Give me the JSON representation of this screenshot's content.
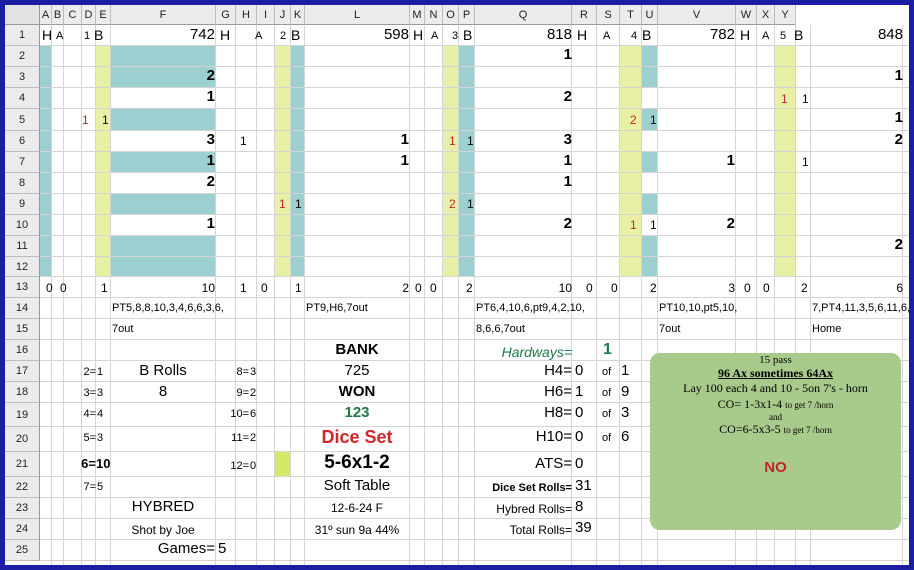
{
  "columns": [
    "A",
    "B",
    "C",
    "D",
    "E",
    "F",
    "G",
    "H",
    "I",
    "J",
    "K",
    "L",
    "M",
    "N",
    "O",
    "P",
    "Q",
    "R",
    "S",
    "T",
    "U",
    "V",
    "W",
    "X",
    "Y"
  ],
  "rows": [
    "1",
    "2",
    "3",
    "4",
    "5",
    "6",
    "7",
    "8",
    "9",
    "10",
    "11",
    "12",
    "13",
    "14",
    "15",
    "16",
    "17",
    "18",
    "19",
    "20",
    "21",
    "22",
    "23",
    "24",
    "25"
  ],
  "row1": {
    "g1": {
      "h": "H",
      "a": "A",
      "n": "1",
      "b": "B",
      "score": "742"
    },
    "g2": {
      "h": "H",
      "a": "A",
      "n": "2",
      "b": "B",
      "score": "598"
    },
    "g3": {
      "h": "H",
      "a": "A",
      "n": "3",
      "b": "B",
      "score": "818"
    },
    "g4": {
      "h": "H",
      "a": "A",
      "n": "4",
      "b": "B",
      "score": "782"
    },
    "g5": {
      "h": "H",
      "a": "A",
      "n": "5",
      "b": "B",
      "score": "848"
    }
  },
  "grid": {
    "e3": "2",
    "e4": "1",
    "e6": "3",
    "e7": "1",
    "e8": "2",
    "e10": "1",
    "c5": "1",
    "d5": "1",
    "f6": "1",
    "h9": "1",
    "i9": "1",
    "j6": "1",
    "j7": "1",
    "m6": "1",
    "n6": "1",
    "m9": "2",
    "n9": "1",
    "o2": "1",
    "o4": "2",
    "o6": "3",
    "o7": "1",
    "o8": "1",
    "o10": "2",
    "r5": "2",
    "s5": "1",
    "r10": "1",
    "s10": "1",
    "t7": "1",
    "t10": "2",
    "w4": "1",
    "x4": "1",
    "x7": "1",
    "y3": "1",
    "y5": "1",
    "y6": "2",
    "y11": "2"
  },
  "row13": {
    "a": "0",
    "b": "0",
    "d": "1",
    "e": "10",
    "f": "1",
    "g": "0",
    "i": "1",
    "j": "2",
    "k": "0",
    "l": "0",
    "n": "2",
    "o": "10",
    "p": "0",
    "q": "0",
    "s": "2",
    "t": "3",
    "u": "0",
    "v": "0",
    "x": "2",
    "y": "6"
  },
  "points": {
    "g1_line1": "PT5,8,8,10,3,4,6,6,3,6,",
    "g1_line2": "7out",
    "g2_line1": "PT9,H6,7out",
    "g3_line1": "PT6,4,10,6,pt9,4,2,10,",
    "g3_line2": "8,6,6,7out",
    "g4_line1": "PT10,10,pt5,10,",
    "g4_line2": "7out",
    "g5_line1": "7,PT4,11,3,5,6,11,6,",
    "g5_line2": "Home"
  },
  "roll_counts": [
    {
      "label": "2=",
      "value": "1"
    },
    {
      "label": "3=",
      "value": "3"
    },
    {
      "label": "4=",
      "value": "4"
    },
    {
      "label": "5=",
      "value": "3"
    },
    {
      "label": "6=",
      "value": "10"
    },
    {
      "label": "7=",
      "value": "5"
    },
    {
      "label": "8=",
      "value": "3"
    },
    {
      "label": "9=",
      "value": "2"
    },
    {
      "label": "10=",
      "value": "6"
    },
    {
      "label": "11=",
      "value": "2"
    },
    {
      "label": "12=",
      "value": "0"
    }
  ],
  "b_rolls": {
    "label": "B Rolls",
    "value": "8"
  },
  "bank": {
    "label": "BANK",
    "value": "725",
    "won_label": "WON",
    "won_value": "123"
  },
  "dice_set": {
    "label": "Dice Set",
    "value": "5-6x1-2",
    "table": "Soft Table",
    "date": "12-6-24 F",
    "weather": "31º sun 9a 44%"
  },
  "hybred": {
    "label": "HYBRED",
    "shooter": "Shot by Joe",
    "games_label": "Games=",
    "games_value": "5"
  },
  "hardways": {
    "label": "Hardways=",
    "value": "1",
    "rows": [
      {
        "label": "H4=",
        "value": "0",
        "of": "of",
        "total": "1"
      },
      {
        "label": "H6=",
        "value": "1",
        "of": "of",
        "total": "9"
      },
      {
        "label": "H8=",
        "value": "0",
        "of": "of",
        "total": "3"
      },
      {
        "label": "H10=",
        "value": "0",
        "of": "of",
        "total": "6"
      }
    ]
  },
  "ats": {
    "label": "ATS=",
    "value": "0"
  },
  "totals": {
    "dice_set_label": "Dice Set Rolls=",
    "dice_set_value": "31",
    "hybred_label": "Hybred Rolls=",
    "hybred_value": "8",
    "total_label": "Total Rolls=",
    "total_value": "39"
  },
  "note": {
    "line1": "15 pass",
    "line2": "96 Ax sometimes 64Ax",
    "line3": "Lay  100 each 4 and 10 - 5on 7's - horn",
    "co1_main": "CO= 1-3x1-4",
    "co1_small": "to get 7 /horn",
    "and": "and",
    "co2_main": "CO=6-5x3-5",
    "co2_small": "to get 7 /horn",
    "result": "NO"
  },
  "colors": {
    "frame": "#1d1da3",
    "teal": "#9ccfcf",
    "yellow": "#e8f0a6",
    "red": "#c0262d",
    "green": "#1d7a46",
    "note_bg": "#a8cb8c"
  }
}
